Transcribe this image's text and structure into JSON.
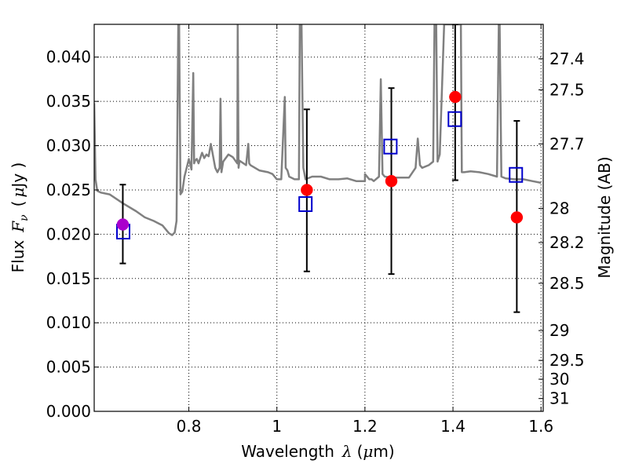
{
  "chart_data": {
    "type": "scatter",
    "title": "",
    "xlabel": {
      "text": "Wavelength",
      "symbol": "λ",
      "unit_open": "(",
      "unit_mu": "μ",
      "unit_rest": "m)"
    },
    "ylabel": {
      "text": "Flux",
      "symbol": "F",
      "symbol_sub": "ν",
      "unit_open": "(",
      "unit_mu": "μ",
      "unit_rest": "Jy )"
    },
    "y2label": "Magnitude (AB)",
    "xlim": [
      0.585,
      1.605
    ],
    "ylim": [
      0.0,
      0.0437
    ],
    "grid": true,
    "x_ticks": [
      0.8,
      1.0,
      1.2,
      1.4,
      1.6
    ],
    "x_tick_labels": [
      "0.8",
      "1",
      "1.2",
      "1.4",
      "1.6"
    ],
    "y_ticks": [
      0.0,
      0.005,
      0.01,
      0.015,
      0.02,
      0.025,
      0.03,
      0.035,
      0.04
    ],
    "y_tick_labels": [
      "0.000",
      "0.005",
      "0.010",
      "0.015",
      "0.020",
      "0.025",
      "0.030",
      "0.035",
      "0.040"
    ],
    "mag_ticks": [
      27.4,
      27.5,
      27.7,
      28,
      28.2,
      28.5,
      29,
      29.5,
      30,
      31
    ],
    "mag_tick_labels": [
      "27.4",
      "27.5",
      "27.7",
      "28",
      "28.2",
      "28.5",
      "29",
      "29.5",
      "30",
      "31"
    ],
    "colors": {
      "model": "#808080",
      "observed": "#ff0000",
      "observed_first": "#aa00cc",
      "model_flux": "#0000cc",
      "errorbar": "#000000",
      "grid": "#000000"
    },
    "series": [
      {
        "kind": "sed_line",
        "x": [
          0.585,
          0.588,
          0.592,
          0.6,
          0.62,
          0.65,
          0.68,
          0.7,
          0.72,
          0.74,
          0.755,
          0.762,
          0.768,
          0.772,
          0.776,
          0.778,
          0.781,
          0.785,
          0.79,
          0.8,
          0.806,
          0.81,
          0.812,
          0.814,
          0.818,
          0.822,
          0.83,
          0.835,
          0.84,
          0.845,
          0.85,
          0.86,
          0.865,
          0.87,
          0.872,
          0.874,
          0.878,
          0.89,
          0.9,
          0.91,
          0.911,
          0.913,
          0.915,
          0.93,
          0.935,
          0.937,
          0.94,
          0.96,
          0.98,
          0.99,
          1.0,
          1.01,
          1.018,
          1.02,
          1.024,
          1.028,
          1.04,
          1.05,
          1.052,
          1.056,
          1.06,
          1.065,
          1.08,
          1.1,
          1.12,
          1.14,
          1.16,
          1.18,
          1.2,
          1.2,
          1.21,
          1.215,
          1.22,
          1.232,
          1.236,
          1.24,
          1.245,
          1.26,
          1.28,
          1.3,
          1.315,
          1.32,
          1.325,
          1.33,
          1.345,
          1.355,
          1.358,
          1.362,
          1.365,
          1.37,
          1.38,
          1.39,
          1.4,
          1.41,
          1.413,
          1.418,
          1.42,
          1.425,
          1.44,
          1.46,
          1.48,
          1.5,
          1.5,
          1.504,
          1.506,
          1.51,
          1.52,
          1.54,
          1.56,
          1.58,
          1.6
        ],
        "y": [
          0.0348,
          0.0262,
          0.0249,
          0.0247,
          0.0245,
          0.0235,
          0.0226,
          0.0219,
          0.0215,
          0.021,
          0.0201,
          0.0199,
          0.0202,
          0.0215,
          0.0437,
          0.0437,
          0.0245,
          0.0248,
          0.0265,
          0.0285,
          0.0273,
          0.0382,
          0.028,
          0.0283,
          0.0285,
          0.028,
          0.0292,
          0.0286,
          0.029,
          0.0288,
          0.0302,
          0.0275,
          0.027,
          0.0275,
          0.0353,
          0.027,
          0.0282,
          0.029,
          0.0287,
          0.028,
          0.0437,
          0.0275,
          0.0283,
          0.0278,
          0.0302,
          0.028,
          0.0278,
          0.0272,
          0.027,
          0.0268,
          0.0262,
          0.0262,
          0.0355,
          0.0275,
          0.0272,
          0.0265,
          0.0262,
          0.0262,
          0.0437,
          0.0437,
          0.0275,
          0.0262,
          0.0265,
          0.0265,
          0.0262,
          0.0262,
          0.0263,
          0.026,
          0.026,
          0.0268,
          0.0262,
          0.0262,
          0.026,
          0.0265,
          0.0375,
          0.0268,
          0.0265,
          0.0264,
          0.0264,
          0.0264,
          0.0275,
          0.0308,
          0.0278,
          0.0275,
          0.0278,
          0.0282,
          0.0437,
          0.0437,
          0.0282,
          0.029,
          0.0437,
          0.0437,
          0.0437,
          0.0437,
          0.0437,
          0.0437,
          0.027,
          0.027,
          0.0271,
          0.027,
          0.0268,
          0.0265,
          0.0265,
          0.0437,
          0.0437,
          0.0265,
          0.0263,
          0.0262,
          0.0262,
          0.026,
          0.0258
        ]
      },
      {
        "kind": "observed",
        "x": [
          0.65,
          1.068,
          1.26,
          1.405,
          1.545
        ],
        "y": [
          0.0211,
          0.025,
          0.026,
          0.0355,
          0.0219
        ],
        "yerr_low": [
          0.0167,
          0.0158,
          0.0155,
          0.0261,
          0.0112
        ],
        "yerr_high": [
          0.0256,
          0.0341,
          0.0365,
          0.0437,
          0.0328
        ]
      },
      {
        "kind": "model_flux",
        "x": [
          0.651,
          1.065,
          1.258,
          1.404,
          1.543
        ],
        "y": [
          0.0203,
          0.0234,
          0.0299,
          0.033,
          0.0267
        ]
      }
    ]
  }
}
